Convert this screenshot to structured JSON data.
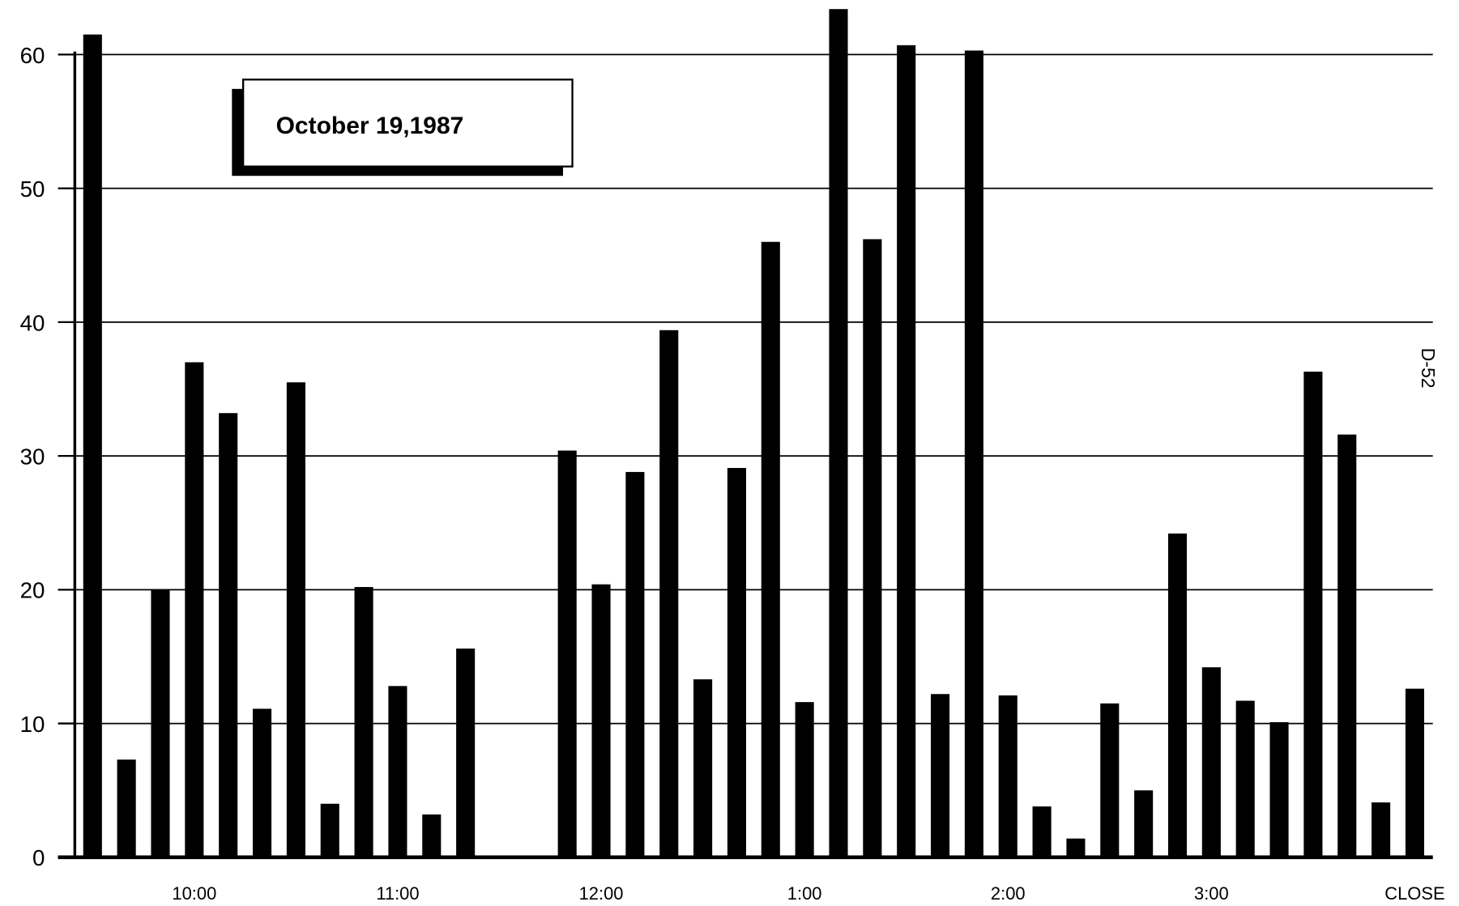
{
  "chart_data": {
    "type": "bar",
    "title": "October 19,1987",
    "annotation": "D-52",
    "categories": [
      null,
      null,
      null,
      "10:00",
      null,
      null,
      null,
      null,
      null,
      "11:00",
      null,
      null,
      null,
      null,
      null,
      "12:00",
      null,
      null,
      null,
      null,
      null,
      "1:00",
      null,
      null,
      null,
      null,
      null,
      "2:00",
      null,
      null,
      null,
      null,
      null,
      "3:00",
      null,
      null,
      null,
      null,
      null,
      "CLOSE"
    ],
    "values": [
      61.5,
      7.3,
      20,
      37,
      33.2,
      11.1,
      35.5,
      4,
      20.2,
      12.8,
      3.2,
      15.6,
      0,
      0,
      30.4,
      20.4,
      28.8,
      39.4,
      13.3,
      29.1,
      46,
      11.6,
      63.4,
      46.2,
      60.7,
      12.2,
      60.3,
      12.1,
      3.8,
      1.4,
      11.5,
      5,
      24.2,
      14.2,
      11.7,
      10.1,
      36.3,
      31.6,
      4.1,
      12.6
    ],
    "color": "#000000",
    "ylim": [
      0,
      64
    ],
    "yticks": [
      0,
      10,
      20,
      30,
      40,
      50,
      60
    ],
    "grid": true
  }
}
